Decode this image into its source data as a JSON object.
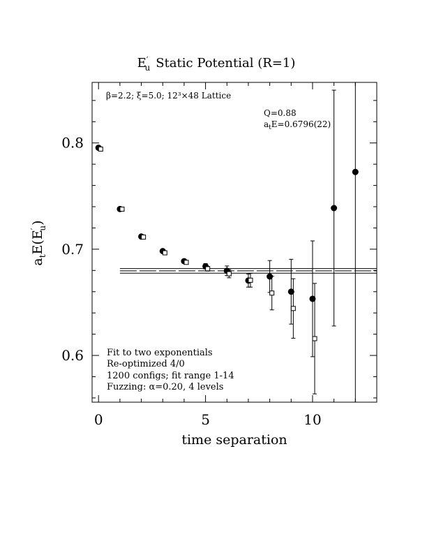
{
  "chart_data": {
    "type": "scatter",
    "title": "Static Potential (R=1)",
    "title_symbol": {
      "base": "E",
      "prime": "′",
      "subscript": "u"
    },
    "ylabel": {
      "prefix": "a",
      "prefix_sub": "t",
      "main": "E(E",
      "prime": "′",
      "sub": "u",
      "close": ")"
    },
    "xlabel": "time separation",
    "xlim": [
      -0.3,
      13.0
    ],
    "ylim": [
      0.556,
      0.857
    ],
    "x_ticks": [
      0,
      5,
      10
    ],
    "x_tick_labels": [
      "0",
      "5",
      "10"
    ],
    "y_ticks": [
      0.6,
      0.7,
      0.8
    ],
    "y_tick_labels": [
      "0.6",
      "0.7",
      "0.8"
    ],
    "top_left_annotation": "β=2.2; ξ=5.0; 12³×48 Lattice",
    "fit_info": [
      "Q=0.88",
      "a_tE=0.6796(22)"
    ],
    "bottom_left_annotation": [
      "Fit to two exponentials",
      "Re-optimized 4/0",
      "1200 configs; fit range 1-14",
      "Fuzzing: α=0.20, 4 levels"
    ],
    "fit": {
      "value": 0.6796,
      "error": 0.0022,
      "x_start": 1.0
    },
    "series": [
      {
        "marker": "filled-circle",
        "x": [
          0,
          1,
          2,
          3,
          4,
          5,
          6,
          7,
          8,
          9,
          10,
          11,
          12
        ],
        "y": [
          0.7955,
          0.7378,
          0.7119,
          0.6982,
          0.6887,
          0.6839,
          0.6797,
          0.6705,
          0.6743,
          0.66,
          0.6533,
          0.7387,
          0.7727
        ],
        "err": [
          0.0005,
          0.0008,
          0.001,
          0.0013,
          0.0018,
          0.0025,
          0.0045,
          0.0062,
          0.015,
          0.0305,
          0.0545,
          0.111,
          0.33
        ]
      },
      {
        "marker": "open-square",
        "x": [
          0.1,
          1.1,
          2.1,
          3.1,
          4.1,
          5.1,
          6.1,
          7.1,
          8.1,
          9.1,
          10.1
        ],
        "y": [
          0.7942,
          0.7377,
          0.7114,
          0.6966,
          0.6876,
          0.6816,
          0.6769,
          0.6708,
          0.6587,
          0.6442,
          0.6158
        ],
        "err": [
          0.0005,
          0.0008,
          0.001,
          0.0012,
          0.0016,
          0.0022,
          0.0038,
          0.0065,
          0.0158,
          0.028,
          0.052
        ]
      }
    ]
  }
}
